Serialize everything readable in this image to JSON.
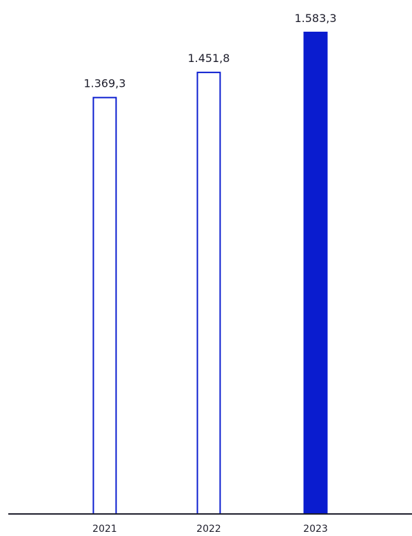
{
  "chart_data": {
    "type": "bar",
    "categories": [
      "2021",
      "2022",
      "2023"
    ],
    "values": [
      1369.3,
      1451.8,
      1583.3
    ],
    "value_labels": [
      "1.369,3",
      "1.451,8",
      "1.583,3"
    ],
    "highlighted": [
      false,
      false,
      true
    ],
    "title": "",
    "xlabel": "",
    "ylabel": "",
    "ylim": [
      0,
      1583.3
    ],
    "grid": false,
    "legend": "none",
    "colors": {
      "bar_stroke": "#0a1ccf",
      "bar_highlight_fill": "#0a1ccf",
      "bar_fill": "#ffffff",
      "axis": "#1d1d2b",
      "text": "#1d1d2b"
    }
  }
}
